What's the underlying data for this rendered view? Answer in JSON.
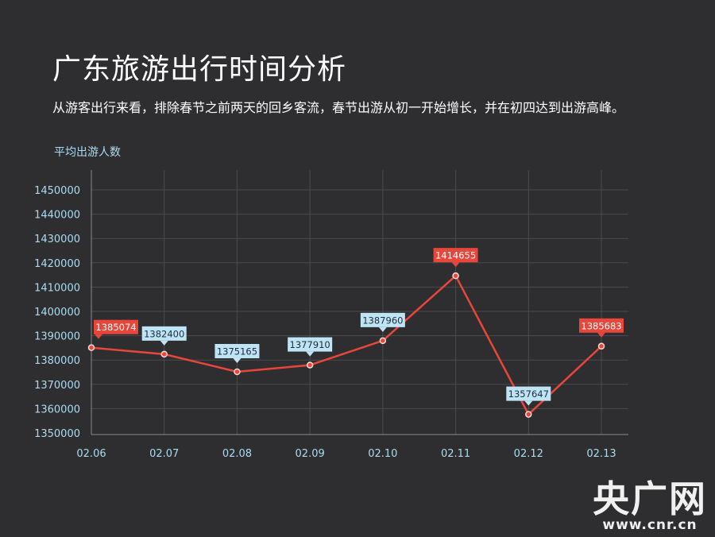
{
  "header": {
    "title": "广东旅游出行时间分析",
    "subtitle": "从游客出行来看，排除春节之前两天的回乡客流，春节出游从初一开始增长，并在初四达到出游高峰。"
  },
  "chart_data": {
    "type": "line",
    "title": "广东旅游出行时间分析",
    "ylabel": "平均出游人数",
    "xlabel": "",
    "categories": [
      "02.06",
      "02.07",
      "02.08",
      "02.09",
      "02.10",
      "02.11",
      "02.12",
      "02.13"
    ],
    "series": [
      {
        "values": [
          1385074,
          1382400,
          1375165,
          1377910,
          1387960,
          1414655,
          1357647,
          1385683
        ],
        "label_styles": [
          "red",
          "blue",
          "blue",
          "blue",
          "blue",
          "red",
          "blue",
          "red"
        ],
        "color": "#e8463a"
      }
    ],
    "ylim": [
      1350000,
      1450000
    ],
    "yticks": [
      1350000,
      1360000,
      1370000,
      1380000,
      1390000,
      1400000,
      1410000,
      1420000,
      1430000,
      1440000,
      1450000
    ],
    "grid": true,
    "colors": {
      "line": "#e8463a",
      "label_red_bg": "#e8463a",
      "label_blue_bg": "#bfe4f6",
      "tick_text": "#a9dcf2",
      "grid": "#4a4a4f"
    }
  },
  "watermark": {
    "main": "央广网",
    "sub": "www.cnr.cn"
  }
}
